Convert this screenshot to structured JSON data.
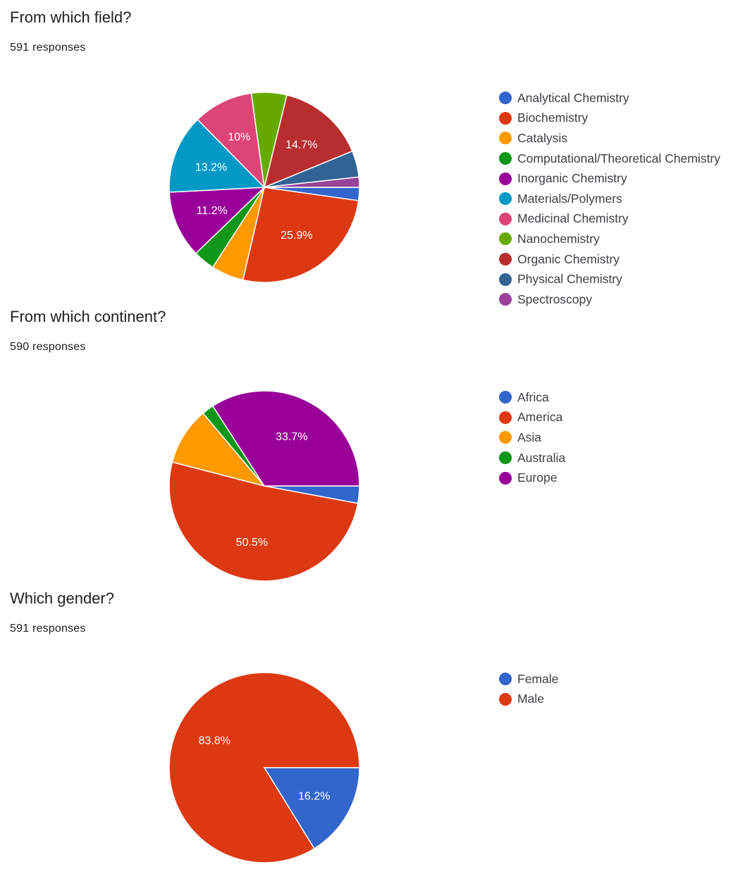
{
  "chart_data": [
    {
      "type": "pie",
      "title": "From which field?",
      "subtitle": "591 responses",
      "legend_position": "right",
      "categories": [
        "Analytical Chemistry",
        "Biochemistry",
        "Catalysis",
        "Computational/Theoretical Chemistry",
        "Inorganic Chemistry",
        "Materials/Polymers",
        "Medicinal Chemistry",
        "Nanochemistry",
        "Organic Chemistry",
        "Physical Chemistry",
        "Spectroscopy"
      ],
      "values": [
        2.2,
        25.9,
        5.4,
        3.6,
        11.2,
        13.2,
        10,
        5.9,
        14.7,
        4.4,
        1.7
      ],
      "labels": [
        "",
        "25.9%",
        "",
        "",
        "11.2%",
        "13.2%",
        "10%",
        "",
        "14.7%",
        "",
        ""
      ],
      "colors": [
        "#3366cc",
        "#dc3912",
        "#ff9900",
        "#109618",
        "#990099",
        "#0099c6",
        "#dd4477",
        "#66aa00",
        "#b82e2e",
        "#316395",
        "#994499"
      ]
    },
    {
      "type": "pie",
      "title": "From which continent?",
      "subtitle": "590 responses",
      "legend_position": "right",
      "categories": [
        "Africa",
        "America",
        "Asia",
        "Australia",
        "Europe"
      ],
      "values": [
        2.9,
        50.5,
        9.7,
        2.0,
        33.7
      ],
      "labels": [
        "",
        "50.5%",
        "",
        "",
        "33.7%"
      ],
      "colors": [
        "#3366cc",
        "#dc3912",
        "#ff9900",
        "#109618",
        "#990099"
      ]
    },
    {
      "type": "pie",
      "title": "Which gender?",
      "subtitle": "591 responses",
      "legend_position": "right",
      "categories": [
        "Female",
        "Male"
      ],
      "values": [
        16.2,
        83.8
      ],
      "labels": [
        "16.2%",
        "83.8%"
      ],
      "colors": [
        "#3366cc",
        "#dc3912"
      ]
    }
  ]
}
